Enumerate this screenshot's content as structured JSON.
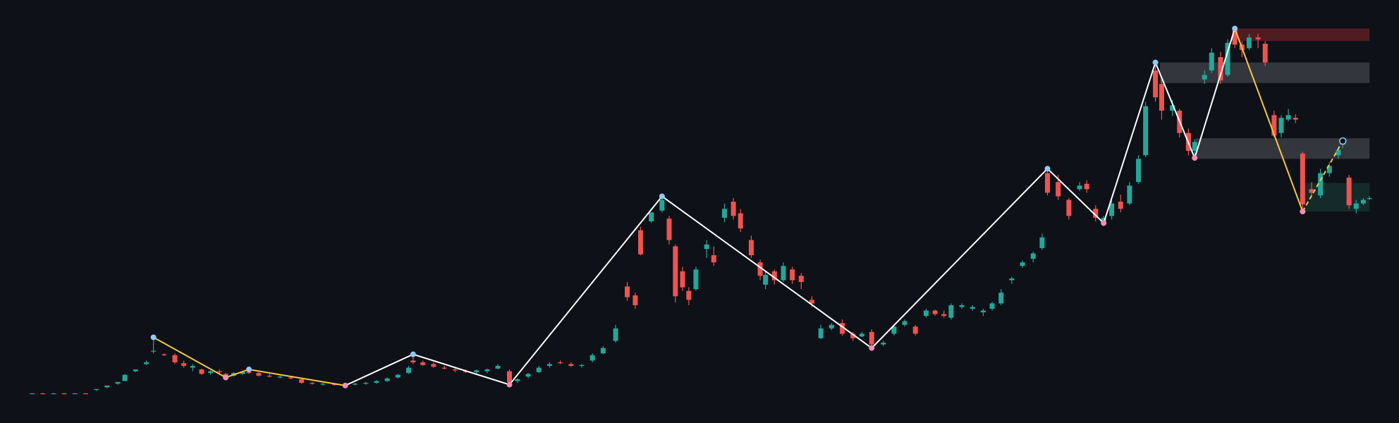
{
  "chart_data": {
    "type": "candlestick",
    "up_color": "#26a69a",
    "down_color": "#ef5350",
    "background": "#0e1117",
    "xlim": [
      0,
      1568
    ],
    "ylim": [
      0,
      474
    ],
    "x": [
      36,
      48,
      60,
      72,
      84,
      96,
      108,
      120,
      132,
      140,
      152,
      164,
      172,
      184,
      196,
      206,
      216,
      226,
      236,
      246,
      253,
      262,
      272,
      279,
      290,
      302,
      314,
      326,
      338,
      350,
      362,
      375,
      387,
      398,
      410,
      422,
      434,
      446,
      458,
      463,
      474,
      486,
      498,
      510,
      522,
      534,
      546,
      558,
      571,
      580,
      592,
      604,
      616,
      628,
      640,
      652,
      664,
      676,
      690,
      703,
      712,
      718,
      730,
      742,
      750,
      757,
      765,
      772,
      780,
      792,
      800,
      812,
      822,
      830,
      842,
      852,
      858,
      868,
      878,
      888,
      898,
      910,
      920,
      932,
      944,
      956,
      966,
      977,
      990,
      1002,
      1014,
      1026,
      1038,
      1048,
      1058,
      1066,
      1078,
      1090,
      1102,
      1112,
      1122,
      1134,
      1146,
      1158,
      1168,
      1174,
      1186,
      1198,
      1210,
      1218,
      1228,
      1237,
      1246,
      1256,
      1266,
      1276,
      1284,
      1295,
      1302,
      1314,
      1322,
      1332,
      1339,
      1350,
      1358,
      1368,
      1376,
      1384,
      1392,
      1400,
      1410,
      1418,
      1428,
      1436,
      1444,
      1452,
      1460,
      1470,
      1480,
      1490,
      1500,
      1505,
      1512,
      1520,
      1528,
      1535
    ],
    "ohlc": [
      [
        33,
        33.5,
        32.5,
        33.2
      ],
      [
        33.2,
        33.5,
        32.5,
        33
      ],
      [
        33,
        33.5,
        32.5,
        33.2
      ],
      [
        33.2,
        33.5,
        32.5,
        33
      ],
      [
        33,
        33.5,
        32.5,
        33.2
      ],
      [
        33.2,
        33.5,
        32.5,
        33
      ],
      [
        37,
        38,
        36,
        38
      ],
      [
        40,
        41,
        39,
        42
      ],
      [
        44,
        45,
        43,
        46
      ],
      [
        47,
        55,
        47,
        54
      ],
      [
        58,
        60,
        57,
        60
      ],
      [
        66,
        70,
        65,
        68
      ],
      [
        80,
        96,
        78,
        81
      ],
      [
        77,
        78,
        75,
        76
      ],
      [
        76,
        78,
        66,
        68
      ],
      [
        67,
        70,
        62,
        64
      ],
      [
        62,
        66,
        58,
        64
      ],
      [
        60,
        61,
        54,
        55
      ],
      [
        56,
        59,
        54,
        58
      ],
      [
        58,
        60,
        55,
        57
      ],
      [
        55,
        56,
        51,
        53
      ],
      [
        53,
        57,
        52,
        56
      ],
      [
        55,
        58,
        54,
        57
      ],
      [
        57,
        60,
        55,
        56
      ],
      [
        56,
        57,
        52,
        53
      ],
      [
        53,
        55,
        51,
        52
      ],
      [
        51,
        53,
        50,
        52
      ],
      [
        51,
        52,
        49,
        50
      ],
      [
        49,
        50,
        44,
        45
      ],
      [
        45,
        46,
        43,
        44
      ],
      [
        43,
        45,
        42,
        44
      ],
      [
        43.5,
        44,
        42,
        43
      ],
      [
        43,
        44,
        42,
        43.5
      ],
      [
        43,
        45,
        42,
        44
      ],
      [
        44,
        46,
        43,
        45
      ],
      [
        45,
        48,
        44,
        47
      ],
      [
        47,
        51,
        46,
        50
      ],
      [
        51,
        55,
        50,
        54
      ],
      [
        56,
        64,
        55,
        62
      ],
      [
        70,
        77,
        66,
        68
      ],
      [
        68,
        70,
        64,
        65
      ],
      [
        66,
        68,
        62,
        63
      ],
      [
        62,
        64,
        60,
        61
      ],
      [
        60,
        62,
        57,
        59
      ],
      [
        58,
        60,
        56,
        57
      ],
      [
        57,
        60,
        55,
        59
      ],
      [
        58,
        61,
        56,
        60
      ],
      [
        61,
        66,
        60,
        64
      ],
      [
        58,
        60,
        43,
        46
      ],
      [
        47,
        50,
        45,
        49
      ],
      [
        52,
        56,
        50,
        55
      ],
      [
        57,
        64,
        56,
        62
      ],
      [
        64,
        68,
        62,
        66
      ],
      [
        68,
        70,
        66,
        67
      ],
      [
        66,
        68,
        63,
        64
      ],
      [
        64,
        66,
        62,
        65
      ],
      [
        70,
        78,
        68,
        76
      ],
      [
        78,
        86,
        77,
        84
      ],
      [
        92,
        110,
        90,
        106
      ],
      [
        153,
        158,
        137,
        141
      ],
      [
        143,
        146,
        128,
        132
      ],
      [
        216,
        220,
        188,
        189
      ],
      [
        226,
        236,
        224,
        236
      ],
      [
        238,
        254,
        236,
        250
      ],
      [
        229,
        232,
        200,
        205
      ],
      [
        198,
        200,
        135,
        142
      ],
      [
        170,
        175,
        148,
        152
      ],
      [
        148,
        152,
        132,
        138
      ],
      [
        150,
        175,
        148,
        172
      ],
      [
        195,
        205,
        185,
        200
      ],
      [
        188,
        198,
        176,
        180
      ],
      [
        230,
        246,
        225,
        240
      ],
      [
        248,
        252,
        228,
        232
      ],
      [
        235,
        240,
        214,
        218
      ],
      [
        205,
        210,
        185,
        188
      ],
      [
        180,
        183,
        160,
        165
      ],
      [
        155,
        170,
        150,
        166
      ],
      [
        170,
        172,
        155,
        160
      ],
      [
        160,
        180,
        158,
        176
      ],
      [
        172,
        175,
        156,
        160
      ],
      [
        165,
        168,
        150,
        158
      ],
      [
        138,
        142,
        130,
        134
      ],
      [
        95,
        110,
        94,
        106
      ],
      [
        106,
        112,
        104,
        110
      ],
      [
        112,
        116,
        98,
        100
      ],
      [
        100,
        102,
        92,
        95
      ],
      [
        97,
        102,
        96,
        100
      ],
      [
        102,
        105,
        84,
        88
      ],
      [
        88,
        92,
        86,
        90
      ],
      [
        100,
        110,
        98,
        108
      ],
      [
        110,
        116,
        108,
        114
      ],
      [
        108,
        110,
        98,
        100
      ],
      [
        120,
        128,
        118,
        126
      ],
      [
        126,
        127,
        120,
        122
      ],
      [
        122,
        126,
        118,
        120
      ],
      [
        118,
        134,
        116,
        132
      ],
      [
        130,
        134,
        128,
        132
      ],
      [
        128,
        132,
        126,
        130
      ],
      [
        124,
        128,
        120,
        126
      ],
      [
        128,
        136,
        126,
        134
      ],
      [
        134,
        150,
        132,
        146
      ],
      [
        160,
        164,
        156,
        162
      ],
      [
        176,
        182,
        174,
        180
      ],
      [
        184,
        192,
        180,
        190
      ],
      [
        196,
        212,
        194,
        208
      ],
      [
        280,
        285,
        255,
        258
      ],
      [
        270,
        278,
        250,
        254
      ],
      [
        250,
        252,
        228,
        232
      ],
      [
        262,
        270,
        260,
        266
      ],
      [
        268,
        272,
        258,
        262
      ],
      [
        240,
        244,
        226,
        230
      ],
      [
        226,
        232,
        222,
        230
      ],
      [
        232,
        250,
        228,
        246
      ],
      [
        248,
        256,
        236,
        240
      ],
      [
        246,
        270,
        244,
        266
      ],
      [
        270,
        300,
        268,
        296
      ],
      [
        300,
        360,
        298,
        355
      ],
      [
        395,
        404,
        360,
        365
      ],
      [
        380,
        385,
        340,
        350
      ],
      [
        350,
        362,
        344,
        356
      ],
      [
        350,
        352,
        320,
        325
      ],
      [
        325,
        330,
        300,
        305
      ],
      [
        305,
        318,
        297,
        315
      ],
      [
        385,
        395,
        380,
        390
      ],
      [
        395,
        420,
        392,
        415
      ],
      [
        410,
        416,
        380,
        384
      ],
      [
        390,
        430,
        388,
        426
      ],
      [
        440,
        442,
        420,
        424
      ],
      [
        424,
        428,
        410,
        418
      ],
      [
        420,
        436,
        418,
        432
      ],
      [
        432,
        436,
        420,
        430
      ],
      [
        425,
        428,
        400,
        404
      ],
      [
        345,
        350,
        320,
        322
      ],
      [
        325,
        345,
        320,
        342
      ],
      [
        340,
        352,
        338,
        345
      ],
      [
        342,
        346,
        336,
        340
      ],
      [
        302,
        304,
        237,
        245
      ],
      [
        262,
        270,
        255,
        258
      ],
      [
        255,
        285,
        252,
        280
      ],
      [
        280,
        292,
        276,
        288
      ],
      [
        300,
        310,
        296,
        306
      ],
      [
        312,
        316,
        308,
        314
      ],
      [
        275,
        278,
        240,
        244
      ],
      [
        240,
        250,
        235,
        246
      ],
      [
        246,
        252,
        244,
        250
      ],
      [
        252,
        254,
        250,
        252
      ]
    ],
    "zones": [
      {
        "color": "#5a1f24",
        "x": [
          1385,
          1535
        ],
        "y": [
          428,
          442
        ]
      },
      {
        "color": "#3a3d44",
        "x": [
          1300,
          1535
        ],
        "y": [
          381,
          404
        ]
      },
      {
        "color": "#3a3d44",
        "x": [
          1340,
          1535
        ],
        "y": [
          296,
          319
        ]
      },
      {
        "color": "#16302f",
        "x": [
          1460,
          1535
        ],
        "y": [
          237,
          269
        ]
      }
    ],
    "zigzag": [
      {
        "color": "#ffffff",
        "x": [
          387,
          463,
          571,
          742,
          977,
          1174,
          1237,
          1295,
          1339,
          1384
        ],
        "y": [
          42,
          77,
          43,
          254,
          84,
          285,
          224,
          404,
          297,
          442
        ]
      },
      {
        "color": "#f5c842",
        "x": [
          172,
          253,
          279,
          387
        ],
        "y": [
          96,
          51,
          60,
          42
        ]
      },
      {
        "color": "#f5c842",
        "x": [
          1384,
          1460
        ],
        "y": [
          442,
          237
        ]
      },
      {
        "color": "#f5c842",
        "dashed": true,
        "x": [
          1460,
          1505
        ],
        "y": [
          237,
          316
        ]
      }
    ],
    "pivot_highs": {
      "color": "#90caf9",
      "x": [
        172,
        279,
        463,
        742,
        1174,
        1295,
        1384
      ],
      "y": [
        96,
        60,
        77,
        254,
        285,
        404,
        442
      ]
    },
    "pivot_lows": {
      "color": "#f48fb1",
      "x": [
        253,
        387,
        571,
        977,
        1237,
        1339,
        1460
      ],
      "y": [
        51,
        42,
        43,
        84,
        224,
        297,
        237
      ]
    },
    "open_point": {
      "color": "#90caf9",
      "x": 1505,
      "y": 316
    }
  }
}
